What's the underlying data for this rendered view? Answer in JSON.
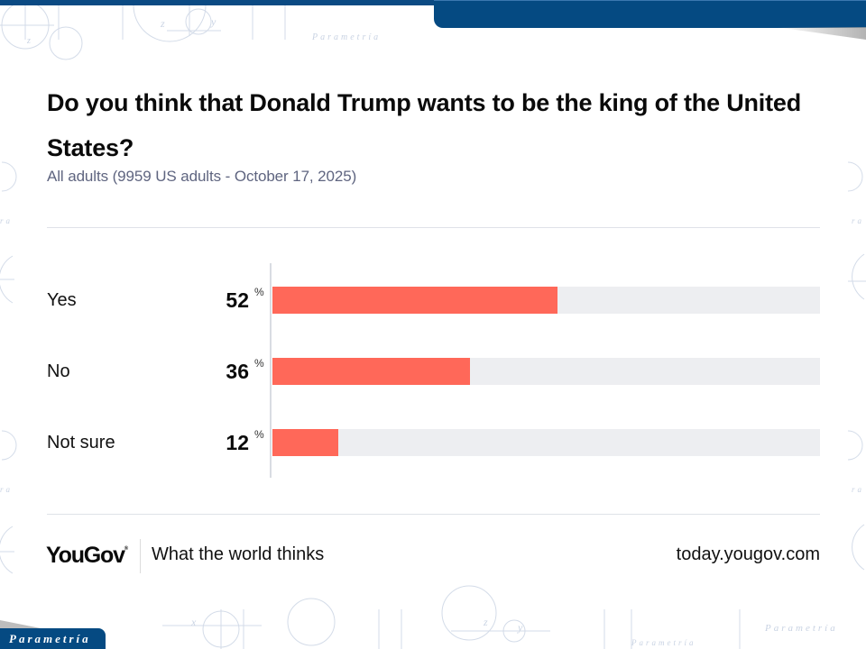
{
  "header": {
    "title": "Do you think that Donald Trump wants to be the king of the United States?",
    "subtitle": "All adults (9959 US adults - October 17, 2025)"
  },
  "colors": {
    "bar": "#ff6859",
    "track": "#edeef1",
    "brand_blue": "#054a82"
  },
  "chart_data": {
    "type": "bar",
    "orientation": "horizontal",
    "title": "Do you think that Donald Trump wants to be the king of the United States?",
    "subtitle": "All adults (9959 US adults - October 17, 2025)",
    "categories": [
      "Yes",
      "No",
      "Not sure"
    ],
    "values": [
      52,
      36,
      12
    ],
    "value_suffix": "%",
    "xlabel": "",
    "ylabel": "",
    "xlim": [
      0,
      100
    ],
    "grid": false,
    "legend": "none"
  },
  "footer": {
    "logo": "YouGov",
    "logo_mark": "®",
    "tagline": "What the world thinks",
    "url": "today.yougov.com"
  },
  "watermark": {
    "brand": "Parametría",
    "icons": [
      "axis-diagram-icon"
    ]
  }
}
